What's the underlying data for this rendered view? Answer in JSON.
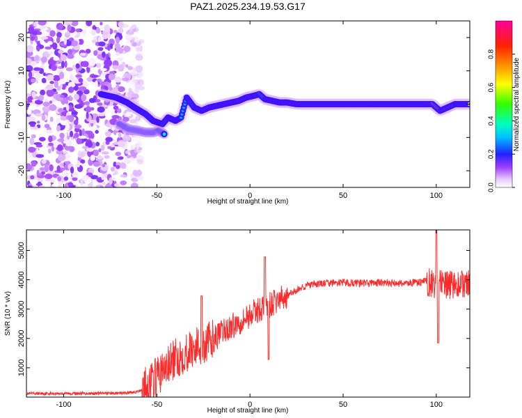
{
  "title": "PAZ1.2025.234.19.53.G17",
  "chart_data": [
    {
      "type": "heatmap",
      "name": "spectrogram",
      "title": "PAZ1.2025.234.19.53.G17",
      "xlabel": "Height of straight line (km)",
      "ylabel": "Frequency (Hz)",
      "xlim": [
        -120,
        118
      ],
      "ylim": [
        -25,
        25
      ],
      "xticks": [
        -100,
        -50,
        0,
        50,
        100
      ],
      "yticks": [
        -20,
        -10,
        0,
        10,
        20
      ],
      "noise_region_x": [
        -120,
        -58
      ],
      "ridge": {
        "x": [
          -80,
          -72,
          -66,
          -62,
          -56,
          -52,
          -47,
          -44,
          -40,
          -37,
          -34,
          -30,
          -26,
          -22,
          -18,
          -14,
          -10,
          -6,
          -2,
          2,
          5,
          8,
          12,
          16,
          20,
          25,
          40,
          60,
          80,
          98,
          100,
          102,
          110,
          118
        ],
        "y": [
          3,
          2,
          0.5,
          -1,
          -3,
          -5,
          -6,
          -4,
          -5,
          -4,
          2,
          -1,
          -2,
          -1,
          -0.5,
          0,
          0.5,
          1,
          2,
          2.5,
          3,
          1.5,
          1,
          0.5,
          0.5,
          0,
          0,
          0,
          0,
          0,
          -1,
          -2,
          0,
          0
        ]
      },
      "secondary_branch": {
        "x": [
          -70,
          -65,
          -60,
          -56,
          -52,
          -49,
          -46
        ],
        "y": [
          -6,
          -7.5,
          -8,
          -8.5,
          -8.5,
          -8,
          -9
        ]
      },
      "colorbar": {
        "label": "Normalized spectral amplitude",
        "range": [
          0,
          1
        ],
        "ticks": [
          "0.0",
          "0.2",
          "0.4",
          "0.6",
          "0.8"
        ]
      }
    },
    {
      "type": "line",
      "name": "snr",
      "xlabel": "Height of straight line (km)",
      "ylabel": "SNR (10 * v/v)",
      "xlim": [
        -120,
        118
      ],
      "ylim": [
        0,
        5700
      ],
      "xticks": [
        -100,
        -50,
        0,
        50,
        100
      ],
      "yticks": [
        1000,
        2000,
        3000,
        4000,
        5000
      ],
      "color": "#ff2a2a",
      "envelope": {
        "x": [
          -120,
          -70,
          -60,
          -55,
          -50,
          -45,
          -40,
          -35,
          -30,
          -25,
          -20,
          -15,
          -10,
          -5,
          0,
          5,
          10,
          15,
          20,
          25,
          30,
          40,
          50,
          60,
          70,
          80,
          90,
          95,
          100,
          105,
          110,
          118
        ],
        "y": [
          120,
          130,
          180,
          400,
          700,
          1000,
          1300,
          1500,
          1700,
          1800,
          1950,
          2200,
          2400,
          2600,
          2800,
          3000,
          3100,
          3300,
          3450,
          3650,
          3800,
          3880,
          3900,
          3880,
          3900,
          3880,
          3900,
          3950,
          3850,
          3800,
          3850,
          3830
        ]
      },
      "spikes": [
        {
          "x": -26,
          "y": 3450
        },
        {
          "x": 8,
          "y": 4780
        },
        {
          "x": 10,
          "y": 1280
        },
        {
          "x": 100,
          "y": 5750
        },
        {
          "x": 101,
          "y": 1850
        }
      ]
    }
  ]
}
